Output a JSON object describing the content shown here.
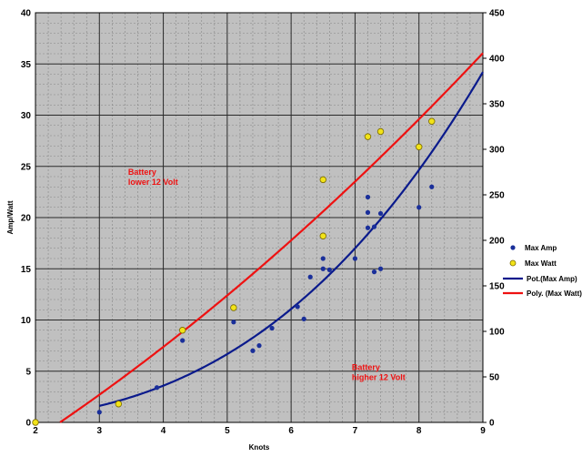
{
  "chart_data": {
    "type": "scatter",
    "xlabel": "Knots",
    "ylabel": "Amp/Watt",
    "xlim": [
      2,
      9
    ],
    "ylim": [
      0,
      40
    ],
    "y2lim": [
      0,
      450
    ],
    "x_ticks": [
      "2",
      "3",
      "4",
      "5",
      "6",
      "7",
      "8",
      "9"
    ],
    "y_ticks": [
      "0",
      "5",
      "10",
      "15",
      "20",
      "25",
      "30",
      "35",
      "40"
    ],
    "y2_ticks": [
      "0",
      "50",
      "100",
      "150",
      "200",
      "250",
      "300",
      "350",
      "400",
      "450"
    ],
    "grid": true,
    "minor_grid": true,
    "plot_background": "#c0c0c0",
    "legend_position": "right",
    "series": [
      {
        "name": "Max Amp",
        "kind": "points",
        "axis": "left",
        "color": "#1a2f9a",
        "points": [
          [
            3.0,
            1.0
          ],
          [
            3.9,
            3.4
          ],
          [
            4.3,
            8.0
          ],
          [
            5.1,
            9.8
          ],
          [
            5.4,
            7.0
          ],
          [
            5.5,
            7.5
          ],
          [
            5.7,
            9.2
          ],
          [
            6.1,
            11.3
          ],
          [
            6.2,
            10.1
          ],
          [
            6.3,
            14.2
          ],
          [
            6.5,
            16.0
          ],
          [
            6.5,
            15.0
          ],
          [
            6.5,
            18.3
          ],
          [
            6.6,
            14.9
          ],
          [
            7.0,
            16.0
          ],
          [
            7.2,
            22.0
          ],
          [
            7.2,
            20.5
          ],
          [
            7.2,
            19.0
          ],
          [
            7.3,
            19.1
          ],
          [
            7.3,
            14.7
          ],
          [
            7.4,
            20.4
          ],
          [
            7.4,
            15.0
          ],
          [
            8.0,
            21.0
          ],
          [
            8.2,
            23.0
          ]
        ]
      },
      {
        "name": "Max Watt",
        "kind": "points",
        "axis": "left",
        "color": "#f2e318",
        "points": [
          [
            2.0,
            0.0
          ],
          [
            3.3,
            1.8
          ],
          [
            4.3,
            9.0
          ],
          [
            5.1,
            11.2
          ],
          [
            6.5,
            23.7
          ],
          [
            6.5,
            18.2
          ],
          [
            7.2,
            27.9
          ],
          [
            7.4,
            28.4
          ],
          [
            8.0,
            26.9
          ],
          [
            8.2,
            29.4
          ]
        ]
      },
      {
        "name": "Pot.(Max Amp)",
        "kind": "trendline",
        "fit": "power",
        "axis": "left",
        "color": "#0a1a8c",
        "x_range": [
          3,
          9
        ]
      },
      {
        "name": "Poly. (Max Watt)",
        "kind": "trendline",
        "fit": "polynomial",
        "axis": "left",
        "color": "#ee1111",
        "x_range": [
          2,
          9
        ]
      }
    ],
    "annotations": [
      {
        "lines": [
          "Battery",
          "lower 12 Volt"
        ],
        "x": 3.45,
        "y": 24.2,
        "color": "#ee1111"
      },
      {
        "lines": [
          "Battery",
          "higher 12 Volt"
        ],
        "x": 6.95,
        "y": 5.1,
        "color": "#ee1111"
      }
    ]
  }
}
